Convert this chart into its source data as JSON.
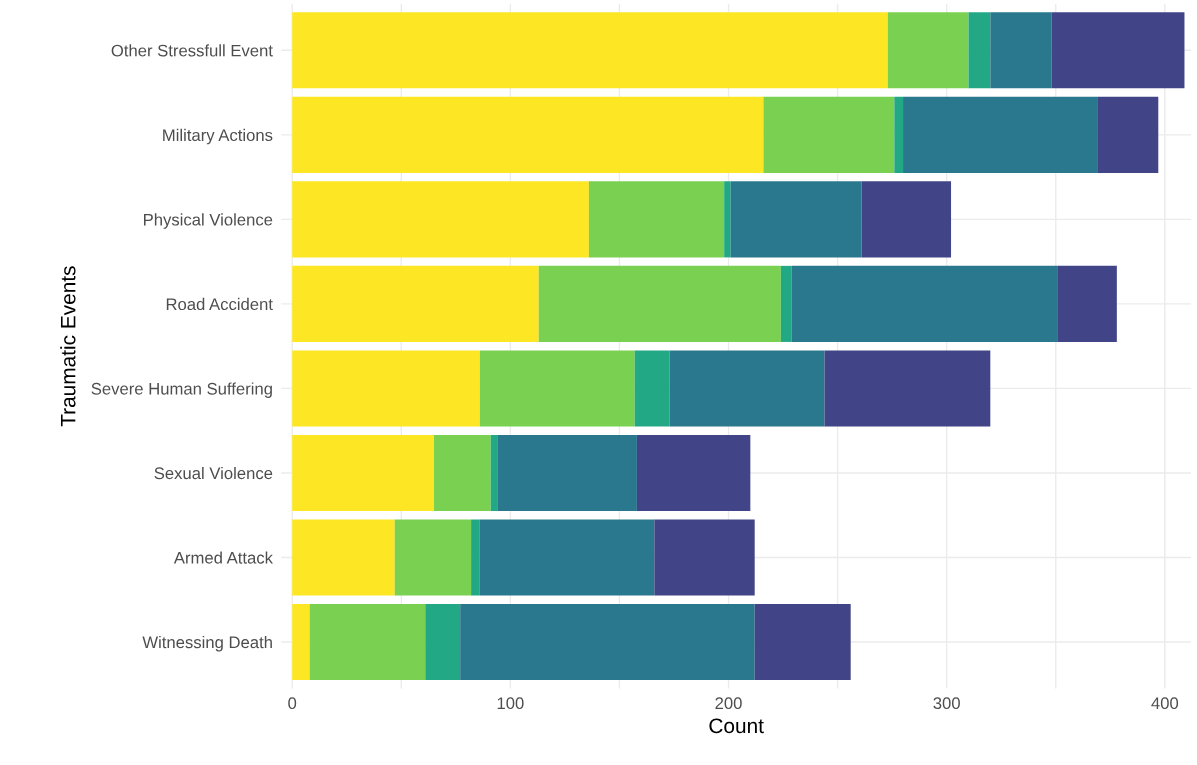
{
  "chart_data": {
    "type": "bar",
    "orientation": "horizontal",
    "stacked": true,
    "xlabel": "Count",
    "ylabel": "Traumatic Events",
    "categories": [
      "Other Stressfull Event",
      "Military Actions",
      "Physical Violence",
      "Road Accident",
      "Severe Human Suffering",
      "Sexual Violence",
      "Armed Attack",
      "Witnessing Death"
    ],
    "series": [
      {
        "color": "#fde725",
        "values": [
          273,
          216,
          136,
          113,
          86,
          65,
          47,
          8
        ]
      },
      {
        "color": "#7ad151",
        "values": [
          37,
          60,
          62,
          111,
          71,
          26,
          35,
          53
        ]
      },
      {
        "color": "#22a884",
        "values": [
          10,
          4,
          3,
          5,
          16,
          3,
          4,
          16
        ]
      },
      {
        "color": "#2a788e",
        "values": [
          28,
          89,
          60,
          122,
          71,
          64,
          80,
          135
        ]
      },
      {
        "color": "#414487",
        "values": [
          61,
          28,
          41,
          27,
          76,
          52,
          46,
          44
        ]
      }
    ],
    "xlim": [
      -5,
      412
    ],
    "xticks": [
      0,
      {
        "value": 50,
        "label": null
      },
      100,
      {
        "value": 150,
        "label": null
      },
      200,
      {
        "value": 250,
        "label": null
      },
      300,
      {
        "value": 350,
        "label": null
      },
      400
    ],
    "grid": true
  }
}
